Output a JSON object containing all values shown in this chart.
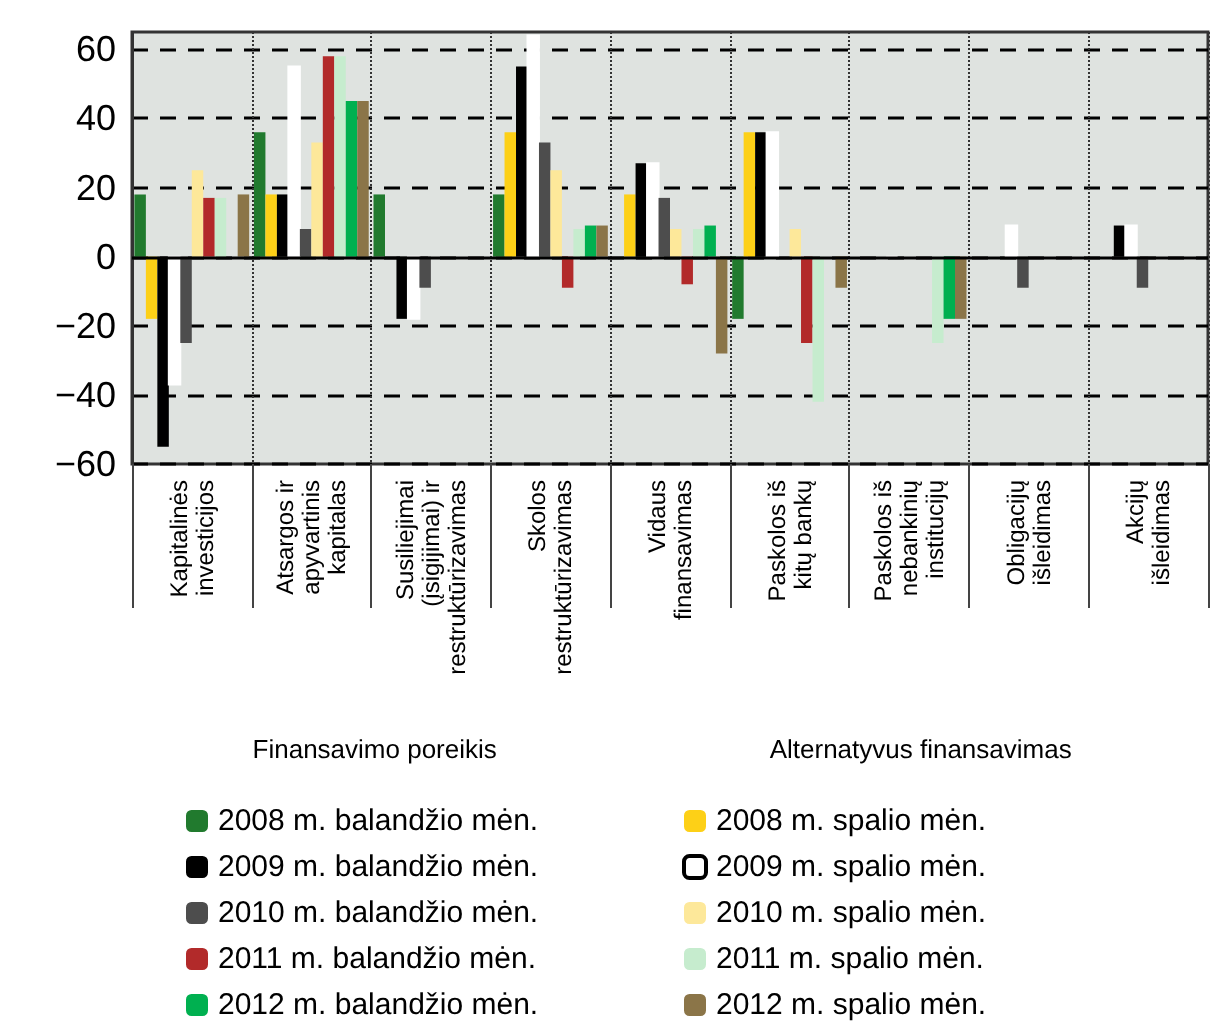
{
  "chart_data": {
    "type": "bar",
    "categories": [
      "Kapitalinės\ninvesticijos",
      "Atsargos ir\napyvartinis\nkapitalas",
      "Susiliejimai\n(įsigijimai) ir\nrestruktūrizavimas",
      "Skolos\nrestruktūrizavimas",
      "Vidaus\nfinansavimas",
      "Paskolos iš\nkitų bankų",
      "Paskolos iš\nnebankinių\ninstitucijų",
      "Obligacijų\nišleidimas",
      "Akcijų\nišleidimas"
    ],
    "series": [
      {
        "name": "2008 m. balandžio mėn.",
        "color": "#217a2e",
        "values": [
          18,
          36,
          18,
          18,
          0,
          -18,
          0,
          0,
          0
        ]
      },
      {
        "name": "2008 m. spalio mėn.",
        "color": "#fdd017",
        "values": [
          -18,
          18,
          0,
          36,
          18,
          36,
          0,
          0,
          0
        ]
      },
      {
        "name": "2009 m. balandžio mėn.",
        "color": "#000000",
        "values": [
          -55,
          18,
          -18,
          55,
          27,
          36,
          0,
          0,
          9
        ]
      },
      {
        "name": "2009 m. spalio mėn.",
        "color": "#ffffff",
        "values": [
          -37,
          55,
          -18,
          64,
          27,
          36,
          0,
          9,
          9
        ]
      },
      {
        "name": "2010 m. balandžio mėn.",
        "color": "#4d4d4d",
        "values": [
          -25,
          8,
          -9,
          33,
          17,
          0,
          0,
          -9,
          -9
        ]
      },
      {
        "name": "2010 m. spalio mėn.",
        "color": "#fde89a",
        "values": [
          25,
          33,
          0,
          25,
          8,
          8,
          0,
          0,
          0
        ]
      },
      {
        "name": "2011 m. balandžio mėn.",
        "color": "#b22a2a",
        "values": [
          17,
          58,
          0,
          -9,
          -8,
          -25,
          0,
          0,
          0
        ]
      },
      {
        "name": "2011 m. spalio mėn.",
        "color": "#c6ecce",
        "values": [
          17,
          58,
          0,
          8,
          8,
          -42,
          -25,
          0,
          0
        ]
      },
      {
        "name": "2012 m. balandžio mėn.",
        "color": "#00b050",
        "values": [
          0,
          45,
          0,
          9,
          9,
          0,
          -18,
          0,
          0
        ]
      },
      {
        "name": "2012 m. spalio mėn.",
        "color": "#8b7548",
        "values": [
          18,
          45,
          0,
          9,
          -28,
          -9,
          -18,
          0,
          0
        ]
      }
    ],
    "ylim": [
      -60,
      65
    ],
    "yticks": [
      -60,
      -40,
      -20,
      0,
      20,
      40,
      60
    ],
    "grid": true,
    "legend": "bottom",
    "annotations": [
      "Finansavimo poreikis",
      "Alternatyvus finansavimas"
    ]
  }
}
